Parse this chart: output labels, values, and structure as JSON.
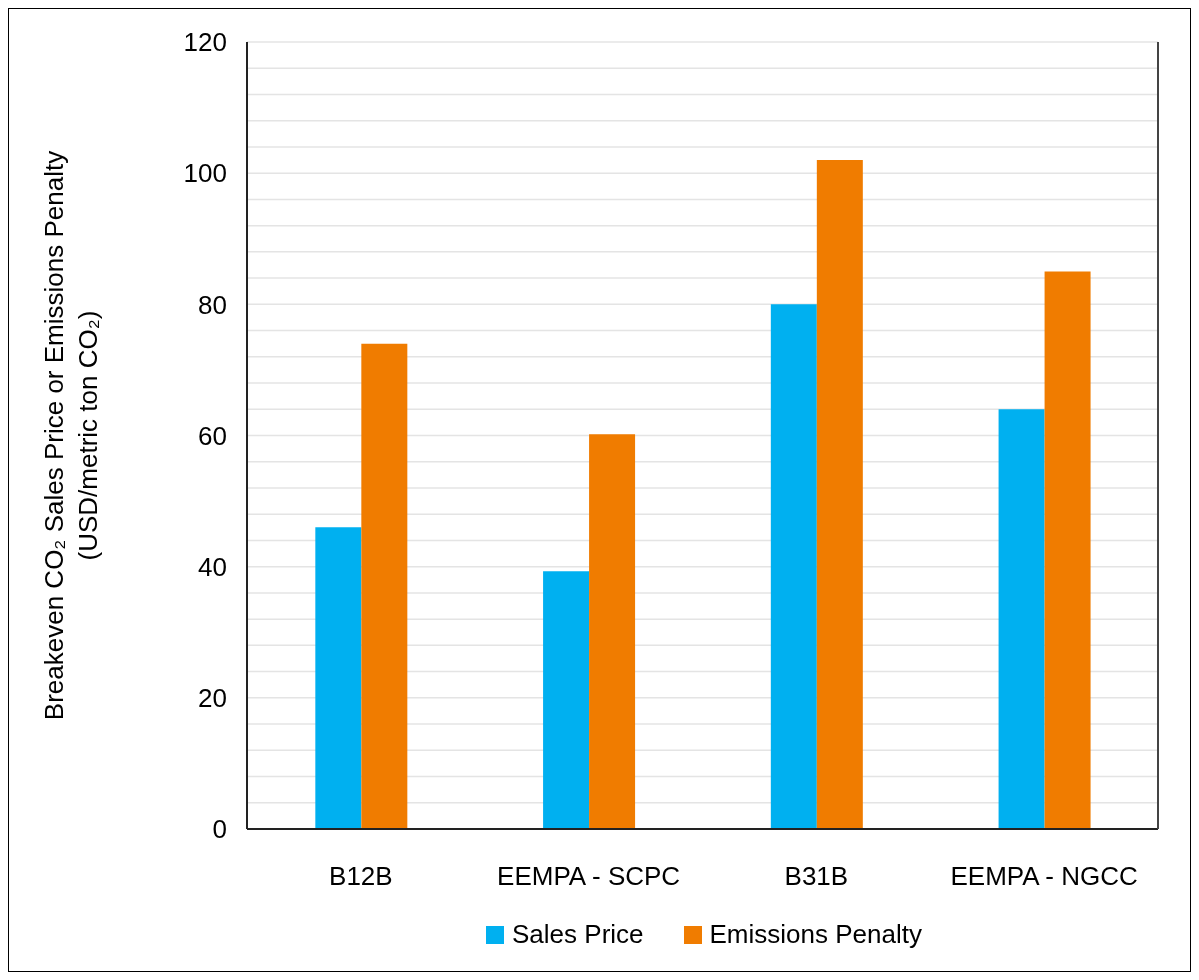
{
  "chart_data": {
    "type": "bar",
    "ylabel": "Breakeven CO₂ Sales Price or Emissions Penalty\n(USD/metric ton CO₂)",
    "categories": [
      "B12B",
      "EEMPA - SCPC",
      "B31B",
      "EEMPA - NGCC"
    ],
    "series": [
      {
        "name": "Sales Price",
        "color": "#00b0f0",
        "values": [
          46,
          39.3,
          80,
          64
        ]
      },
      {
        "name": "Emissions Penalty",
        "color": "#f07c00",
        "values": [
          74,
          60.2,
          102,
          85
        ]
      }
    ],
    "ylim": [
      0,
      120
    ],
    "yticks": [
      0,
      {
        "value": 4,
        "label": null
      },
      {
        "value": 8,
        "label": null
      },
      {
        "value": 12,
        "label": null
      },
      {
        "value": 16,
        "label": null
      },
      20,
      {
        "value": 24,
        "label": null
      },
      {
        "value": 28,
        "label": null
      },
      {
        "value": 32,
        "label": null
      },
      {
        "value": 36,
        "label": null
      },
      40,
      {
        "value": 44,
        "label": null
      },
      {
        "value": 48,
        "label": null
      },
      {
        "value": 52,
        "label": null
      },
      {
        "value": 56,
        "label": null
      },
      60,
      {
        "value": 64,
        "label": null
      },
      {
        "value": 68,
        "label": null
      },
      {
        "value": 72,
        "label": null
      },
      {
        "value": 76,
        "label": null
      },
      80,
      {
        "value": 84,
        "label": null
      },
      {
        "value": 88,
        "label": null
      },
      {
        "value": 92,
        "label": null
      },
      {
        "value": 96,
        "label": null
      },
      100,
      {
        "value": 104,
        "label": null
      },
      {
        "value": 108,
        "label": null
      },
      {
        "value": 112,
        "label": null
      },
      {
        "value": 116,
        "label": null
      },
      120
    ],
    "grid": true,
    "legend": "bottom"
  }
}
